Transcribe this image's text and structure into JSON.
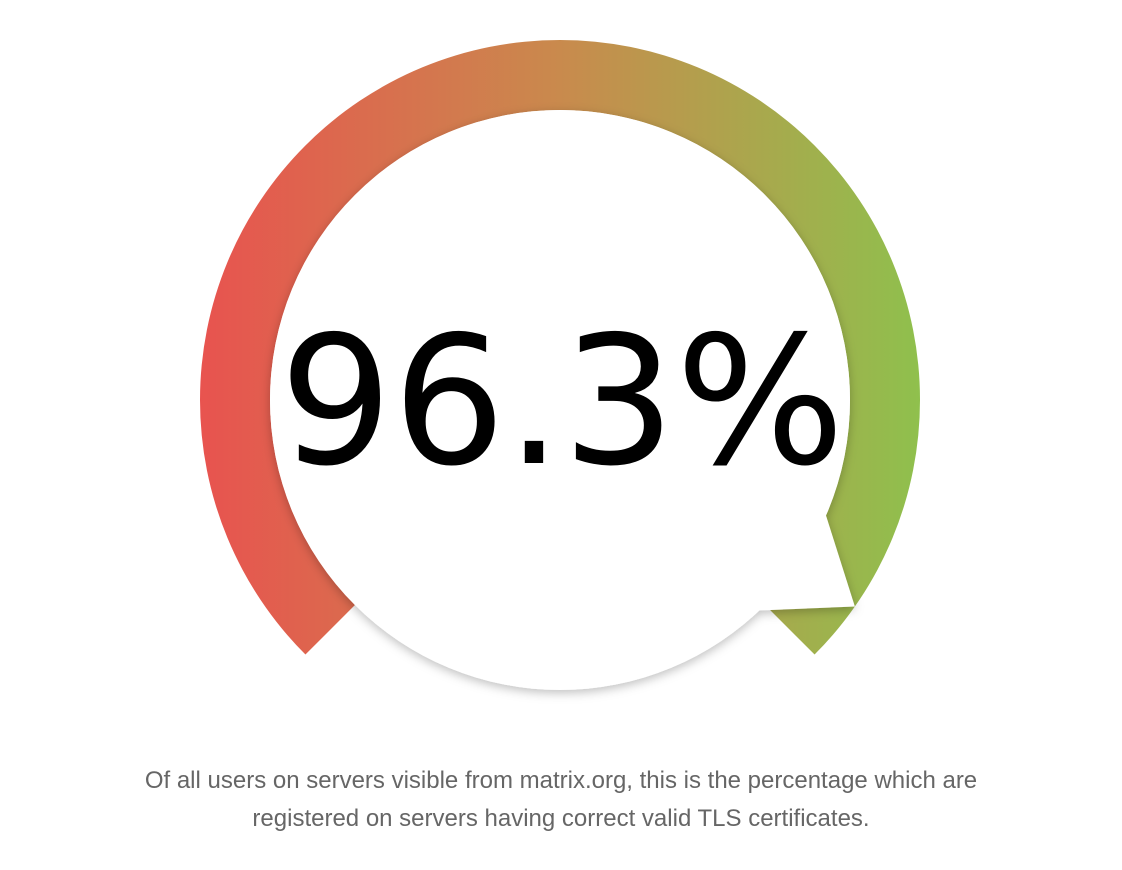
{
  "chart_data": {
    "type": "gauge",
    "value": 96.3,
    "min": 0,
    "max": 100,
    "value_label": "96.3%",
    "colors": {
      "low": "#e8534f",
      "mid": "#c98a4d",
      "high": "#8fc04d"
    }
  },
  "caption": {
    "line1": "Of all users on servers visible from matrix.org, this is the percentage which are",
    "line2": "registered on servers having correct valid TLS certificates."
  }
}
